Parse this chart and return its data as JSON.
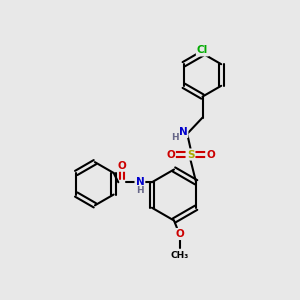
{
  "bg_color": "#e8e8e8",
  "bond_color": "#000000",
  "bond_lw": 1.5,
  "atom_colors": {
    "N": "#0000cc",
    "O": "#cc0000",
    "S": "#aaaa00",
    "Cl": "#00aa00",
    "C": "#000000",
    "H": "#666688"
  },
  "font_size": 7.5,
  "font_size_small": 6.5
}
